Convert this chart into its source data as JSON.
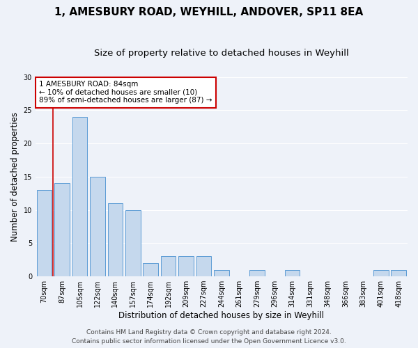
{
  "title_line1": "1, AMESBURY ROAD, WEYHILL, ANDOVER, SP11 8EA",
  "title_line2": "Size of property relative to detached houses in Weyhill",
  "xlabel": "Distribution of detached houses by size in Weyhill",
  "ylabel": "Number of detached properties",
  "footer_line1": "Contains HM Land Registry data © Crown copyright and database right 2024.",
  "footer_line2": "Contains public sector information licensed under the Open Government Licence v3.0.",
  "bins": [
    "70sqm",
    "87sqm",
    "105sqm",
    "122sqm",
    "140sqm",
    "157sqm",
    "174sqm",
    "192sqm",
    "209sqm",
    "227sqm",
    "244sqm",
    "261sqm",
    "279sqm",
    "296sqm",
    "314sqm",
    "331sqm",
    "348sqm",
    "366sqm",
    "383sqm",
    "401sqm",
    "418sqm"
  ],
  "values": [
    13,
    14,
    24,
    15,
    11,
    10,
    2,
    3,
    3,
    3,
    1,
    0,
    1,
    0,
    1,
    0,
    0,
    0,
    0,
    1,
    1
  ],
  "bar_color": "#c5d8ed",
  "bar_edge_color": "#5b9bd5",
  "highlight_line_color": "#cc0000",
  "annotation_line1": "1 AMESBURY ROAD: 84sqm",
  "annotation_line2": "← 10% of detached houses are smaller (10)",
  "annotation_line3": "89% of semi-detached houses are larger (87) →",
  "annotation_box_color": "#ffffff",
  "annotation_box_edge_color": "#cc0000",
  "ylim": [
    0,
    30
  ],
  "yticks": [
    0,
    5,
    10,
    15,
    20,
    25,
    30
  ],
  "background_color": "#eef2f9",
  "grid_color": "#ffffff",
  "title_fontsize": 11,
  "subtitle_fontsize": 9.5,
  "axis_label_fontsize": 8.5,
  "tick_fontsize": 7,
  "annotation_fontsize": 7.5,
  "footer_fontsize": 6.5
}
